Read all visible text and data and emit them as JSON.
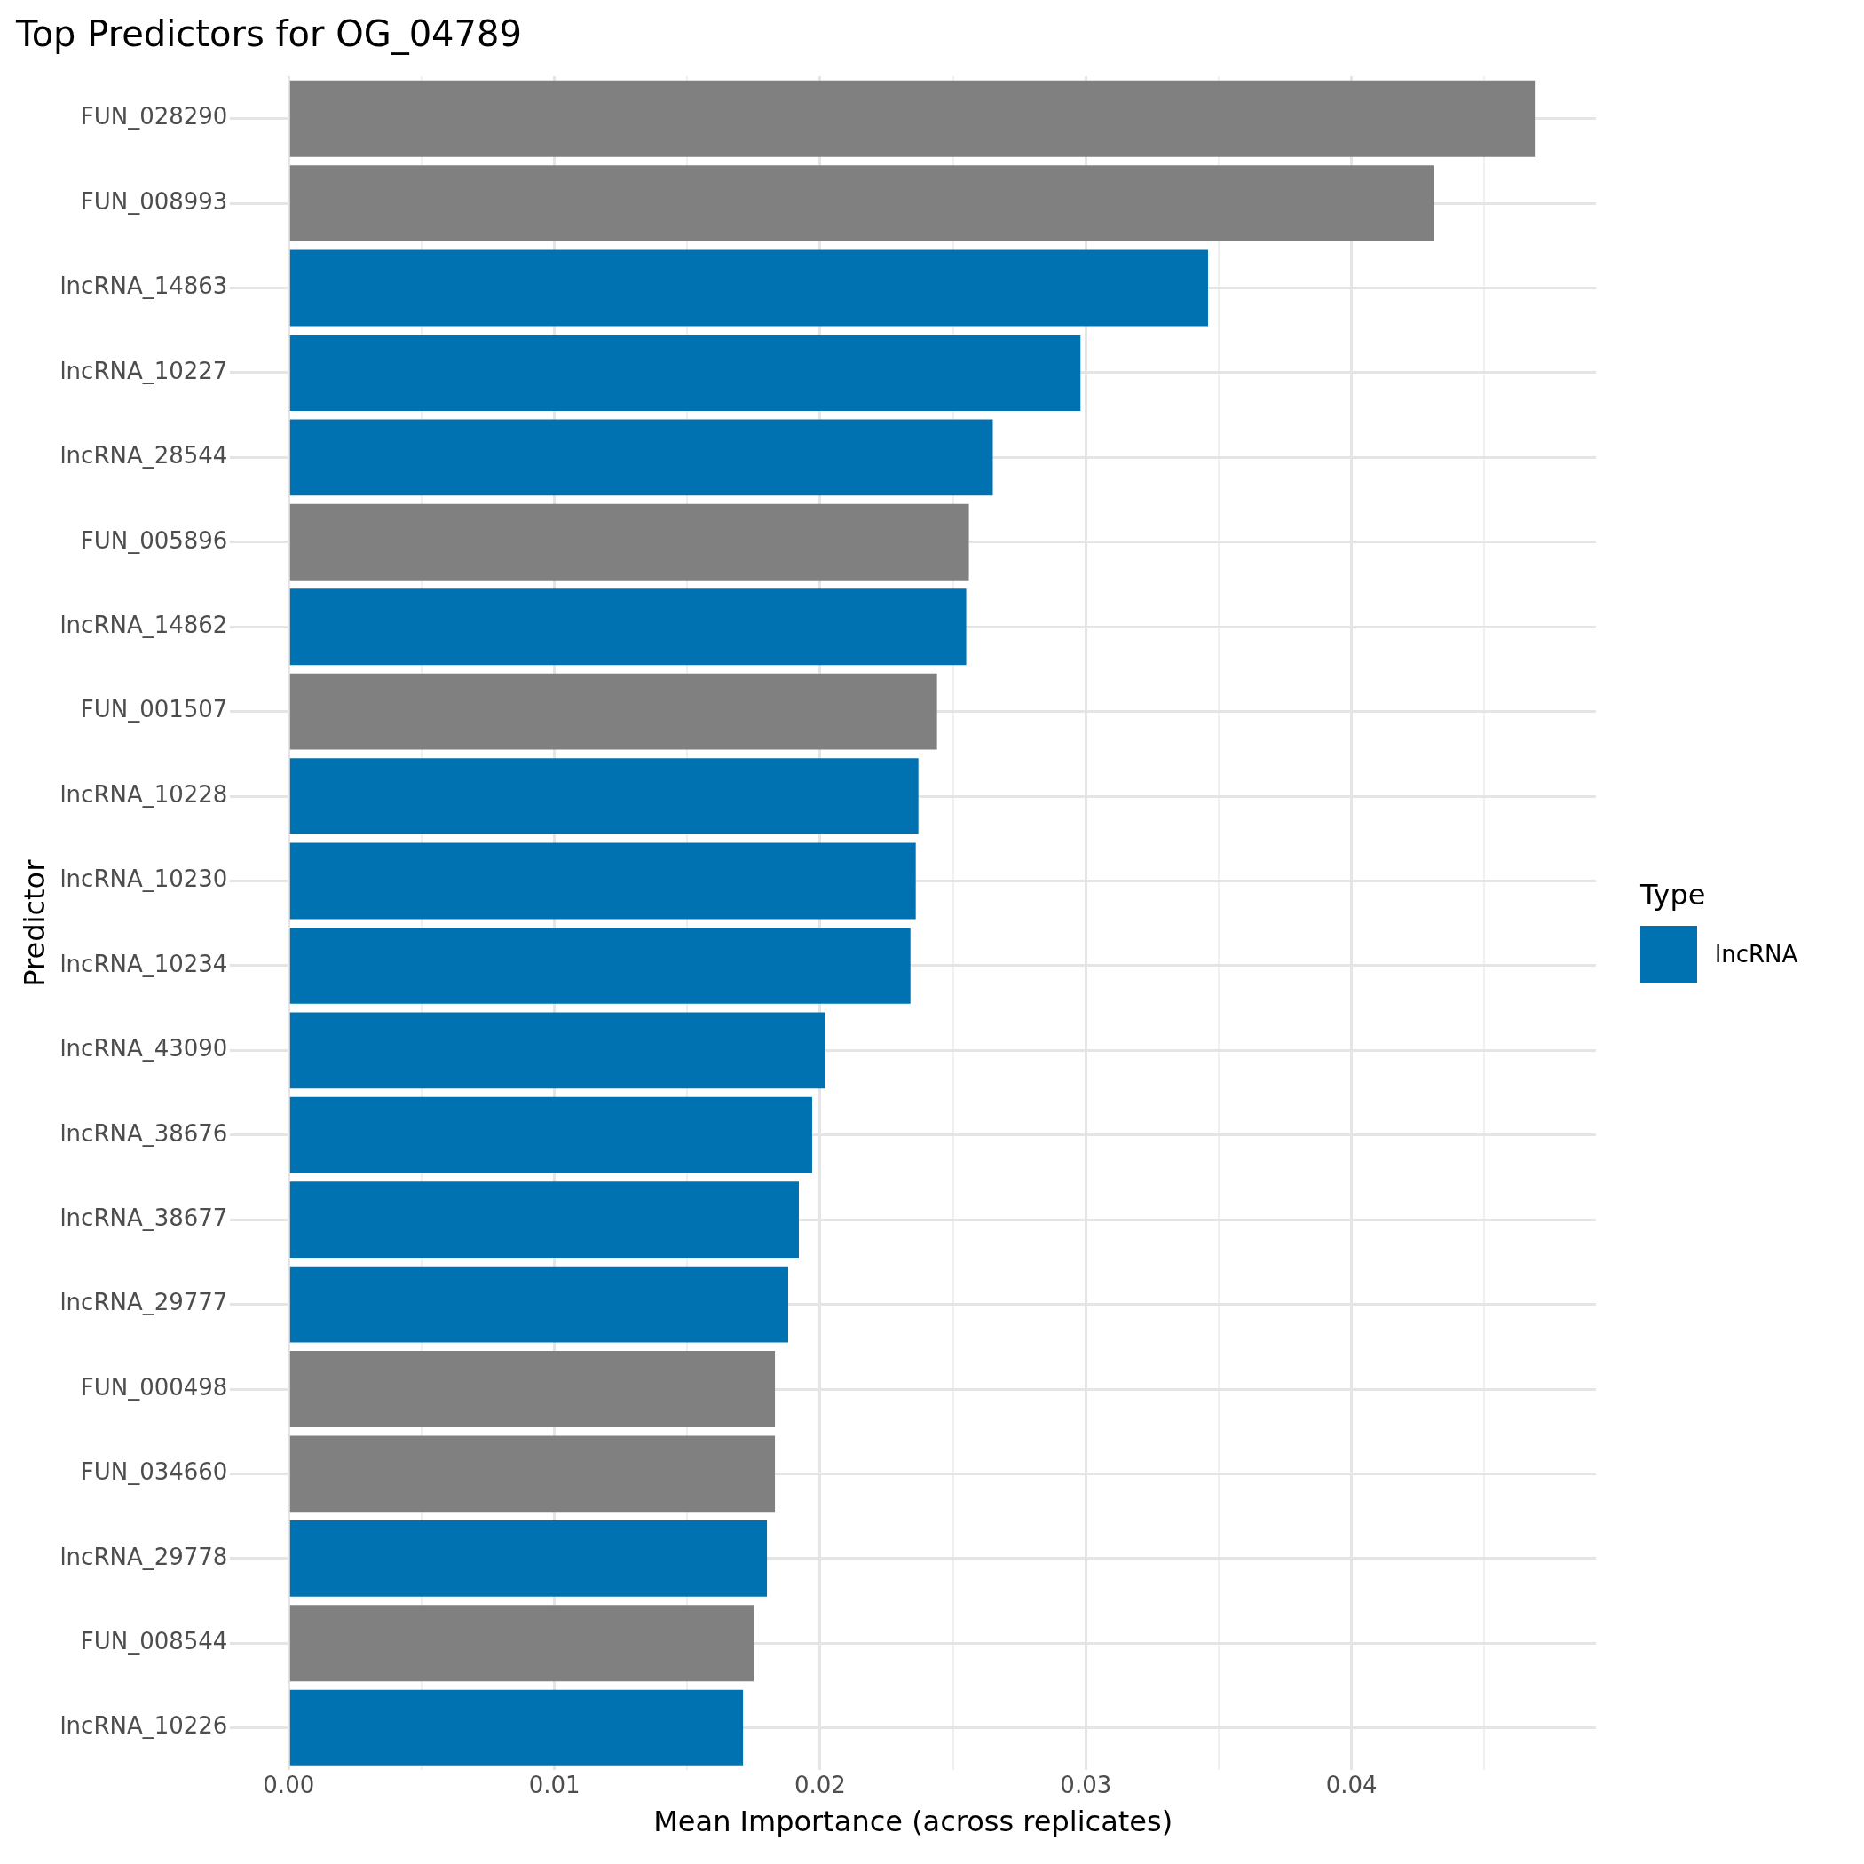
{
  "chart_data": {
    "type": "bar",
    "orientation": "horizontal",
    "title": "Top Predictors for OG_04789",
    "xlabel": "Mean Importance (across replicates)",
    "ylabel": "Predictor",
    "legend_title": "Type",
    "legend": "right",
    "categories": [
      "FUN_028290",
      "FUN_008993",
      "lncRNA_14863",
      "lncRNA_10227",
      "lncRNA_28544",
      "FUN_005896",
      "lncRNA_14862",
      "FUN_001507",
      "lncRNA_10228",
      "lncRNA_10230",
      "lncRNA_10234",
      "lncRNA_43090",
      "lncRNA_38676",
      "lncRNA_38677",
      "lncRNA_29777",
      "FUN_000498",
      "FUN_034660",
      "lncRNA_29778",
      "FUN_008544",
      "lncRNA_10226"
    ],
    "series": [
      {
        "name": "lncRNA",
        "color": "#0072b2",
        "values": [
          null,
          null,
          0.0346,
          0.0298,
          0.0265,
          null,
          0.0255,
          null,
          0.0237,
          0.0236,
          0.0234,
          0.0202,
          0.0197,
          0.0192,
          0.0188,
          null,
          null,
          0.018,
          null,
          0.0171
        ]
      },
      {
        "color": "#808080",
        "values": [
          0.0469,
          0.0431,
          null,
          null,
          null,
          0.0256,
          null,
          0.0244,
          null,
          null,
          null,
          null,
          null,
          null,
          null,
          0.0183,
          0.0183,
          null,
          0.0175,
          null
        ]
      }
    ],
    "xlim": [
      -0.0022,
      0.0492
    ],
    "xticks": [
      {
        "value": 0,
        "label": "0.00"
      },
      {
        "value": 0.005,
        "label": null
      },
      0.01,
      {
        "value": 0.015,
        "label": null
      },
      0.02,
      {
        "value": 0.025,
        "label": null
      },
      0.03,
      {
        "value": 0.035,
        "label": null
      },
      0.04,
      {
        "value": 0.045,
        "label": null
      }
    ],
    "grid": true
  }
}
